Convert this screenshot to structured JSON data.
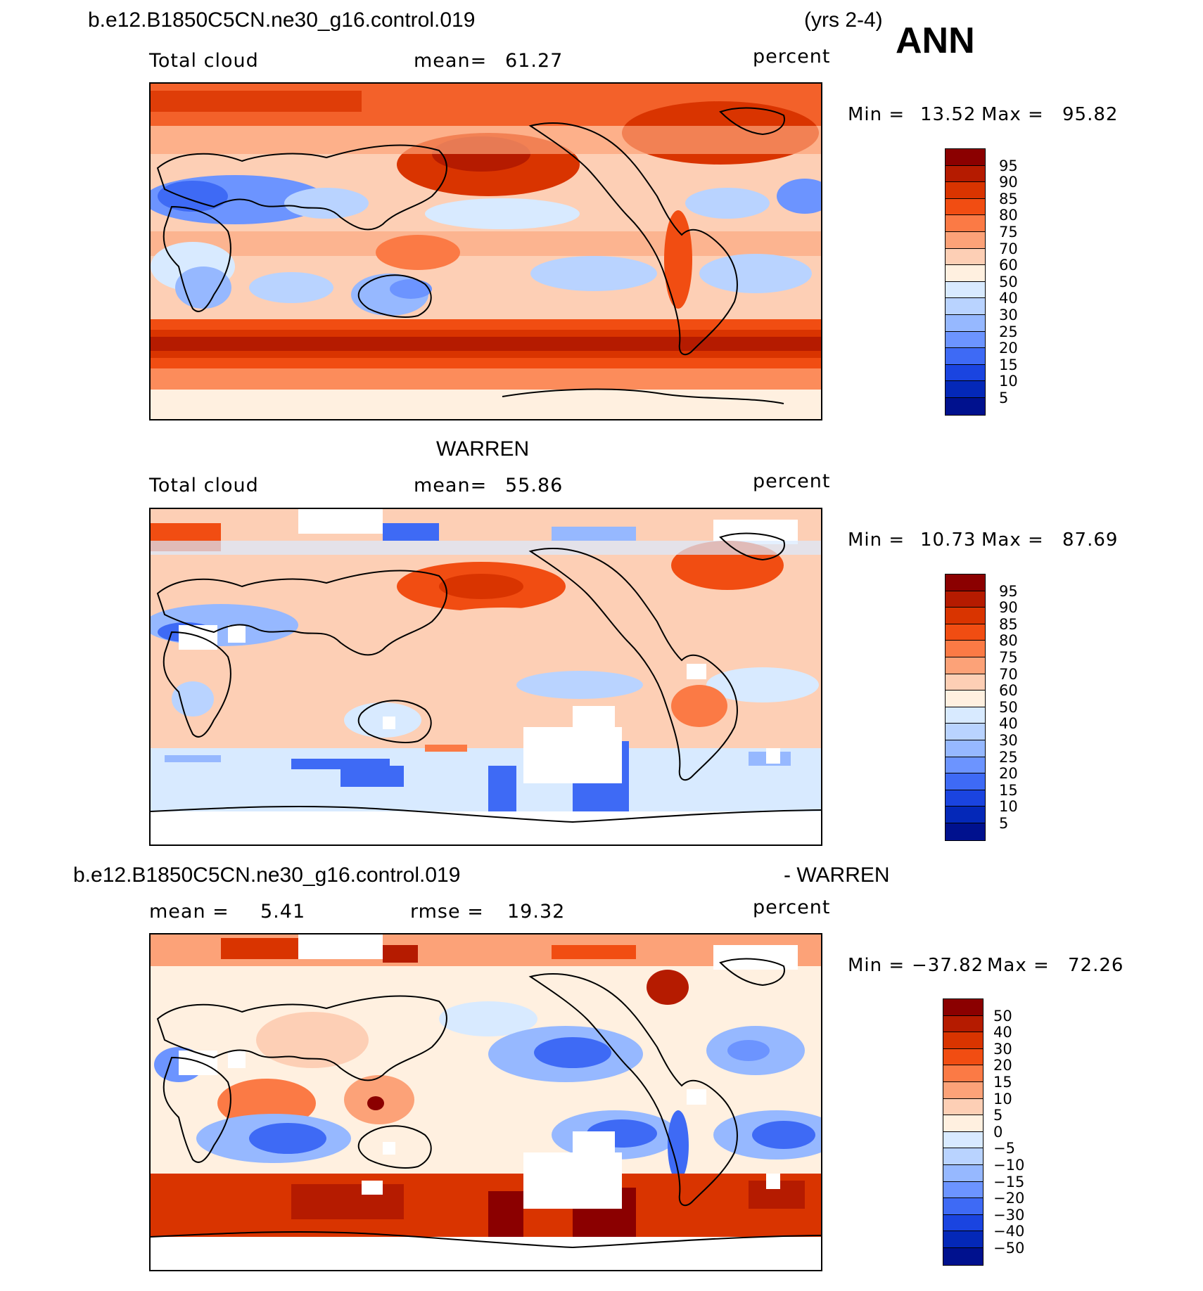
{
  "header": {
    "case_name": "b.e12.B1850C5CN.ne30_g16.control.019",
    "years": "(yrs 2-4)",
    "season": "ANN"
  },
  "panels": [
    {
      "id": "model",
      "variable": "Total cloud",
      "stat_label": "mean=",
      "stat_value": "61.27",
      "units": "percent",
      "min_label": "Min =",
      "min_value": "13.52",
      "max_label": "Max =",
      "max_value": "95.82"
    },
    {
      "id": "obs",
      "title": "WARREN",
      "variable": "Total cloud",
      "stat_label": "mean=",
      "stat_value": "55.86",
      "units": "percent",
      "min_label": "Min =",
      "min_value": "10.73",
      "max_label": "Max =",
      "max_value": "87.69"
    },
    {
      "id": "diff",
      "title_left": "b.e12.B1850C5CN.ne30_g16.control.019",
      "title_right": "- WARREN",
      "stat_label": "mean =",
      "stat_value": "5.41",
      "rmse_label": "rmse =",
      "rmse_value": "19.32",
      "units": "percent",
      "min_label": "Min =",
      "min_value": "−37.82",
      "max_label": "Max =",
      "max_value": "72.26"
    }
  ],
  "chart_data": [
    {
      "type": "heatmap",
      "title": "Total cloud",
      "units": "percent",
      "mean": 61.27,
      "min": 13.52,
      "max": 95.82,
      "colorbar_levels": [
        95,
        90,
        85,
        80,
        75,
        70,
        60,
        50,
        40,
        30,
        25,
        20,
        15,
        10,
        5
      ]
    },
    {
      "type": "heatmap",
      "title": "WARREN",
      "units": "percent",
      "mean": 55.86,
      "min": 10.73,
      "max": 87.69,
      "colorbar_levels": [
        95,
        90,
        85,
        80,
        75,
        70,
        60,
        50,
        40,
        30,
        25,
        20,
        15,
        10,
        5
      ]
    },
    {
      "type": "heatmap",
      "title": "b.e12.B1850C5CN.ne30_g16.control.019 - WARREN",
      "units": "percent",
      "mean": 5.41,
      "rmse": 19.32,
      "min": -37.82,
      "max": 72.26,
      "colorbar_levels": [
        "50",
        "40",
        "30",
        "20",
        "15",
        "10",
        "5",
        "0",
        "−5",
        "−10",
        "−15",
        "−20",
        "−30",
        "−40",
        "−50"
      ]
    }
  ],
  "colors": {
    "scale": [
      "#8b0000",
      "#b51b00",
      "#d93400",
      "#f14d12",
      "#fb7a45",
      "#fca278",
      "#fdcfb5",
      "#fff0e0",
      "#d8eaff",
      "#b9d3ff",
      "#96b8ff",
      "#6c94ff",
      "#3e6af5",
      "#1a44e0",
      "#0428b8",
      "#00118e"
    ]
  }
}
